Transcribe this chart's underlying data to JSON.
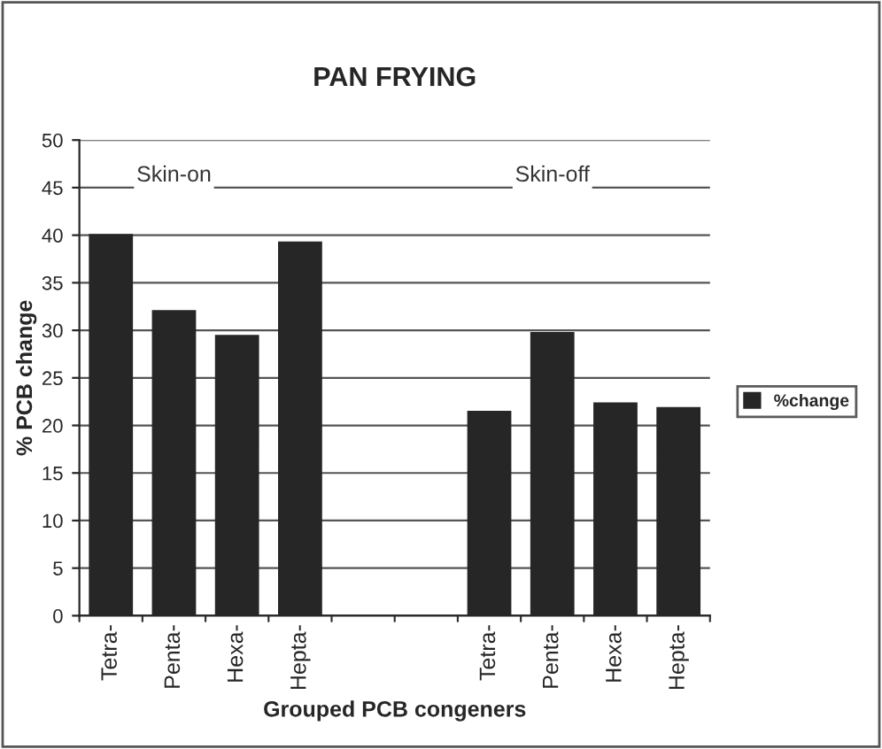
{
  "chart_data": {
    "type": "bar",
    "title": "PAN FRYING",
    "xlabel": "Grouped PCB congeners",
    "ylabel": "% PCB change",
    "categories": [
      "Tetra-",
      "Penta-",
      "Hexa-",
      "Hepta-",
      null,
      null,
      "Tetra-",
      "Penta-",
      "Hexa-",
      "Hepta-"
    ],
    "series": [
      {
        "name": "%change",
        "color": "#262626",
        "values": [
          40,
          32,
          29.4,
          39.2,
          null,
          null,
          21.4,
          29.7,
          22.3,
          21.8
        ]
      }
    ],
    "annotations": [
      "Skin-on",
      "Skin-off"
    ],
    "ylim": [
      0,
      50
    ],
    "yticks": [
      0,
      5,
      10,
      15,
      20,
      25,
      30,
      35,
      40,
      45,
      50
    ],
    "grid": "y",
    "legend": "right"
  }
}
